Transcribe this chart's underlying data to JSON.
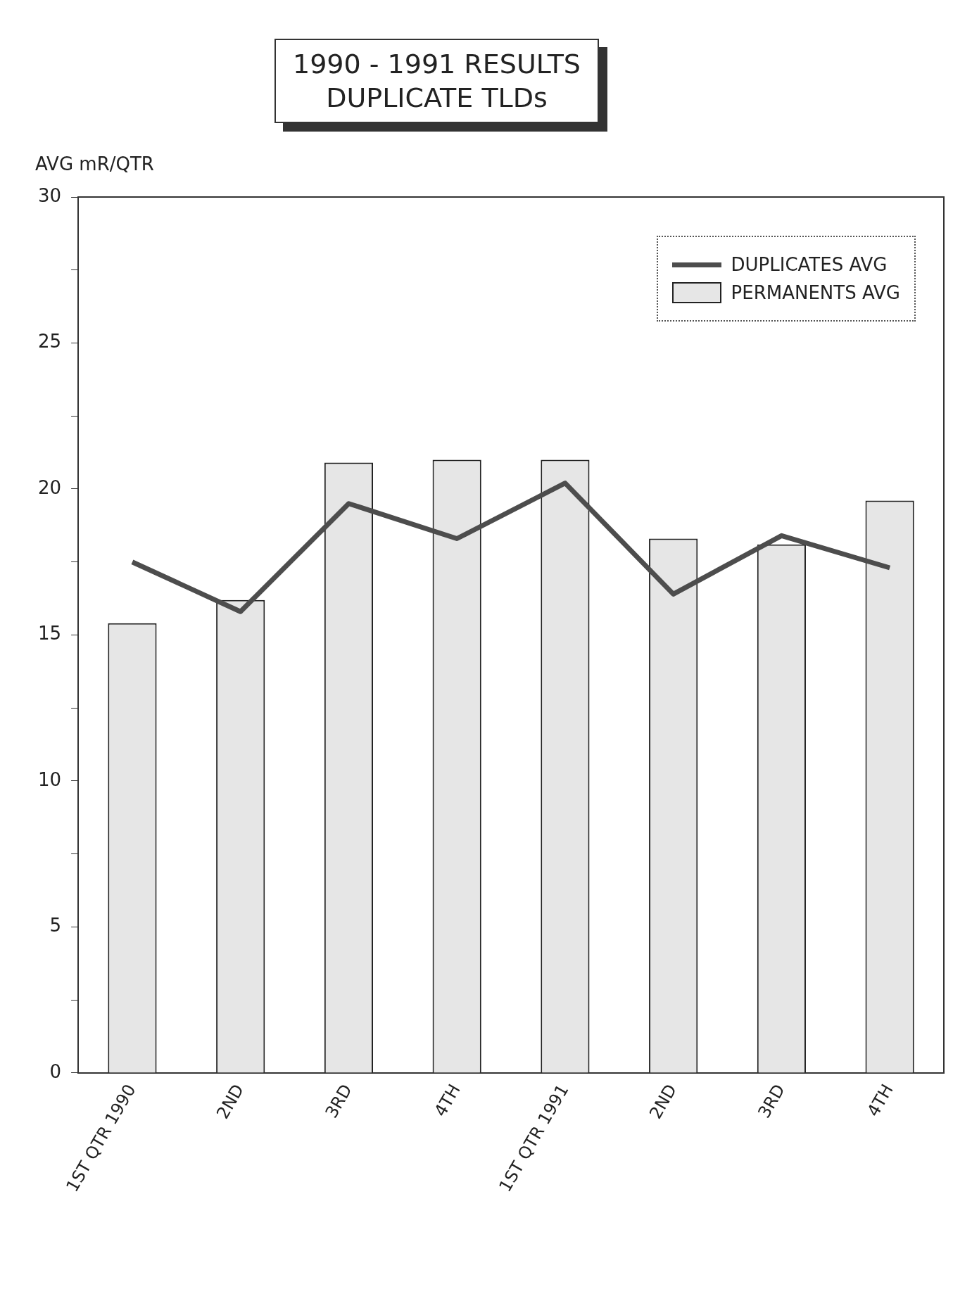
{
  "chart_data": {
    "type": "bar",
    "title": "1990 - 1991 RESULTS",
    "subtitle": "DUPLICATE TLDs",
    "ylabel": "AVG mR/QTR",
    "categories": [
      "1ST QTR 1990",
      "2ND",
      "3RD",
      "4TH",
      "1ST QTR 1991",
      "2ND",
      "3RD",
      "4TH"
    ],
    "series": [
      {
        "name": "DUPLICATES AVG",
        "type": "line",
        "color": "#4d4d4d",
        "values": [
          17.5,
          15.8,
          19.5,
          18.3,
          20.2,
          16.4,
          18.4,
          17.3
        ]
      },
      {
        "name": "PERMANENTS AVG",
        "color": "#e6e6e6",
        "values": [
          15.4,
          16.2,
          20.9,
          21.0,
          21.0,
          18.3,
          18.1,
          19.6
        ]
      }
    ],
    "ylim": [
      0,
      30
    ],
    "yticks": [
      0,
      {
        "value": 2.5,
        "label": null
      },
      5,
      {
        "value": 7.5,
        "label": null
      },
      10,
      {
        "value": 12.5,
        "label": null
      },
      15,
      {
        "value": 17.5,
        "label": null
      },
      20,
      {
        "value": 22.5,
        "label": null
      },
      25,
      {
        "value": 27.5,
        "label": null
      },
      30
    ],
    "grid": false,
    "legend": "top right",
    "marker": "none"
  }
}
